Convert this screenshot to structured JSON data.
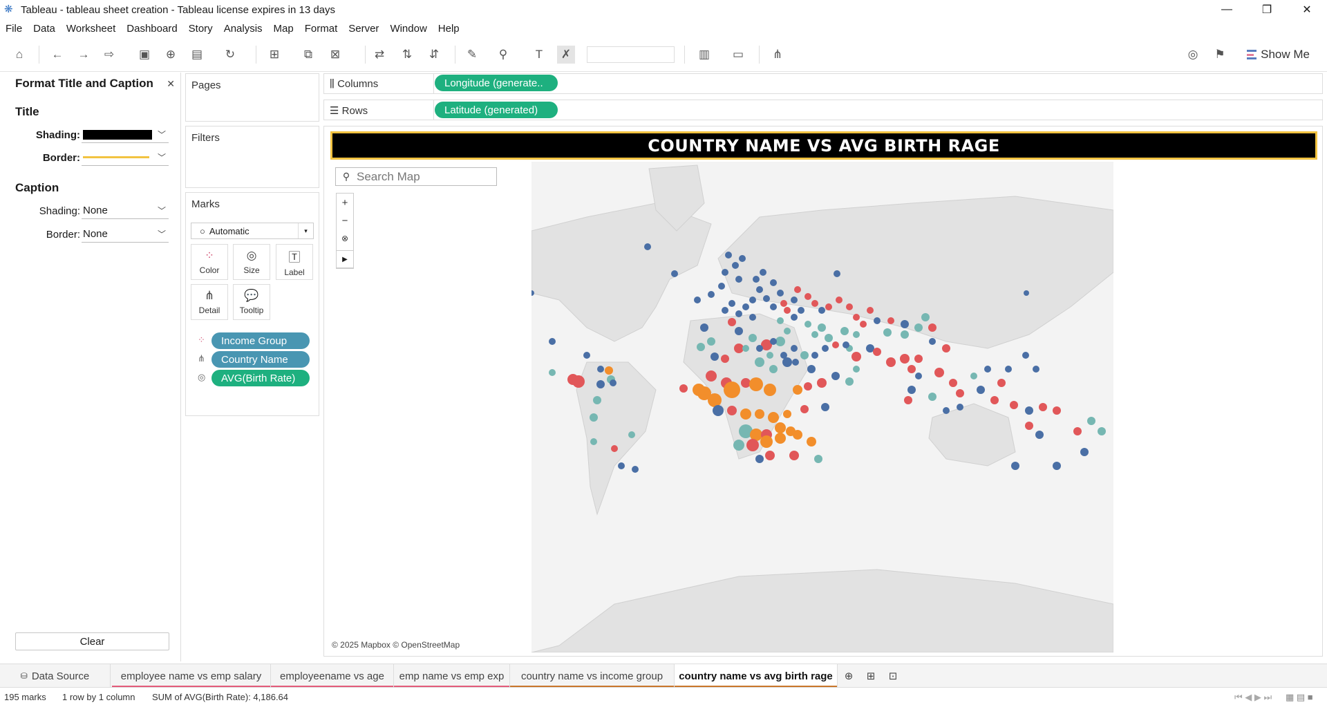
{
  "window": {
    "title": "Tableau - tableau sheet creation - Tableau license expires in 13 days"
  },
  "menu": [
    "File",
    "Data",
    "Worksheet",
    "Dashboard",
    "Story",
    "Analysis",
    "Map",
    "Format",
    "Server",
    "Window",
    "Help"
  ],
  "toolbar": {
    "show_me_label": "Show Me"
  },
  "format_panel": {
    "title": "Format Title and Caption",
    "title_section": "Title",
    "caption_section": "Caption",
    "shading_label": "Shading:",
    "border_label": "Border:",
    "caption_shading_value": "None",
    "caption_border_value": "None",
    "title_shading_color": "#000000",
    "title_border_color": "#f2c341",
    "clear_label": "Clear"
  },
  "cards": {
    "pages": "Pages",
    "filters": "Filters",
    "marks": "Marks",
    "mark_type": "Automatic",
    "buttons": [
      "Color",
      "Size",
      "Label",
      "Detail",
      "Tooltip"
    ],
    "pills": [
      "Income Group",
      "Country Name",
      "AVG(Birth Rate)"
    ]
  },
  "shelves": {
    "columns_label": "Columns",
    "columns_pill": "Longitude (generate..",
    "rows_label": "Rows",
    "rows_pill": "Latitude (generated)"
  },
  "view": {
    "title": "COUNTRY NAME VS AVG BIRTH RAGE",
    "search_placeholder": "Search Map",
    "attribution": "© 2025 Mapbox © OpenStreetMap",
    "colors": {
      "high": "#4a6fa5",
      "upper_middle": "#76b7b2",
      "lower_middle": "#e15759",
      "low": "#f28e2b"
    }
  },
  "tabs": [
    {
      "label": "Data Source"
    },
    {
      "label": "employee name vs emp salary"
    },
    {
      "label": "employeename vs age"
    },
    {
      "label": "emp name vs emp exp"
    },
    {
      "label": "country name vs income group"
    },
    {
      "label": "country name vs avg birth rage"
    }
  ],
  "status": {
    "marks": "195 marks",
    "rows": "1 row by 1 column",
    "sum": "SUM of AVG(Birth Rate): 4,186.64"
  }
}
